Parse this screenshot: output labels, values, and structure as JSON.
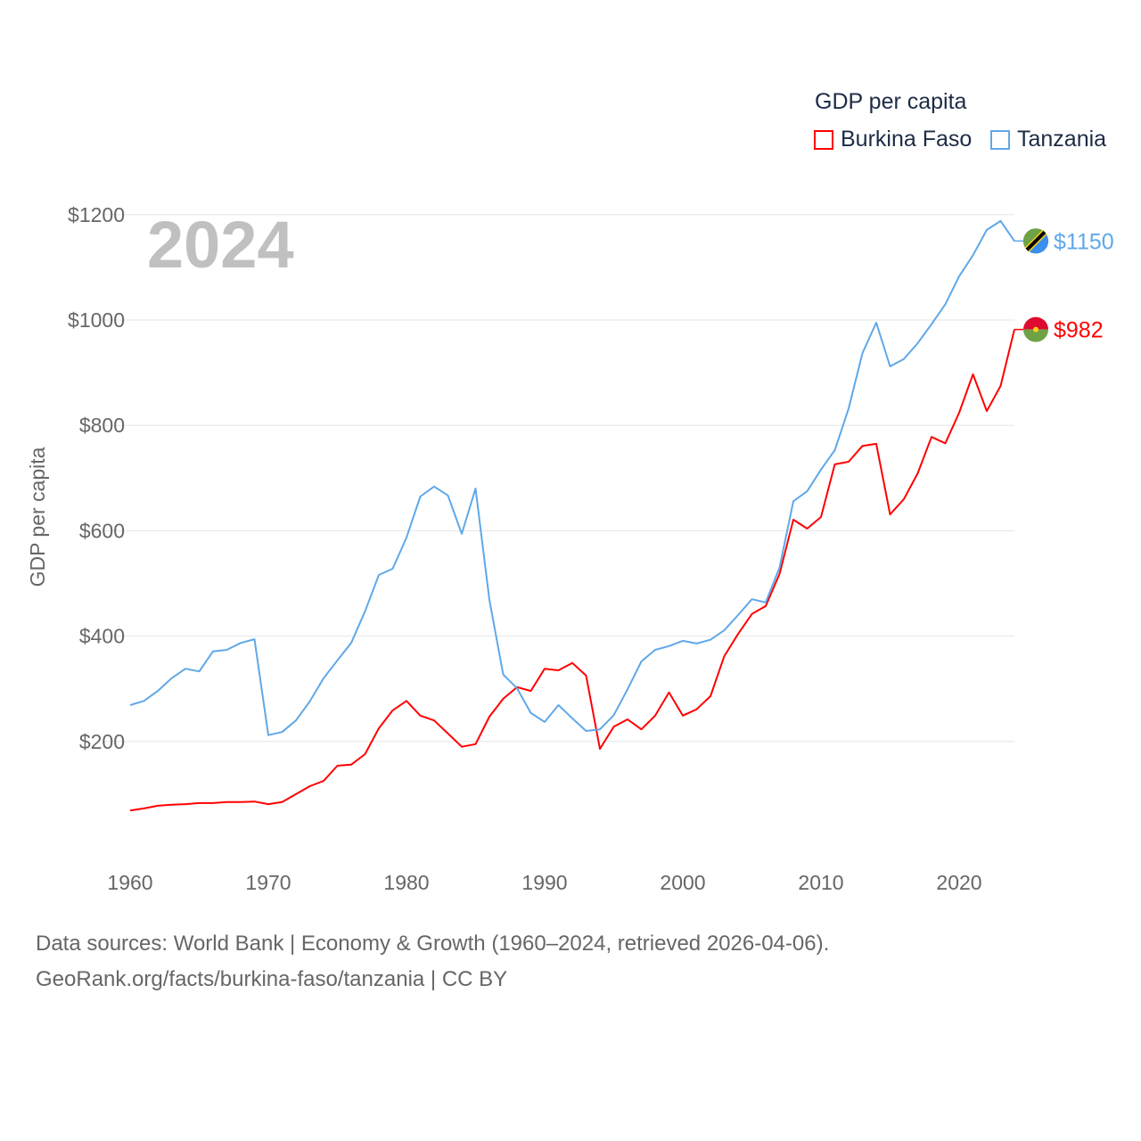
{
  "chart_data": {
    "type": "line",
    "title": "GDP per capita",
    "year_label": "2024",
    "xlabel": "",
    "ylabel": "GDP per capita",
    "xlim": [
      1960,
      2024
    ],
    "ylim": [
      0,
      1200
    ],
    "x_ticks": [
      1960,
      1970,
      1980,
      1990,
      2000,
      2010,
      2020
    ],
    "y_ticks": [
      200,
      400,
      600,
      800,
      1000,
      1200
    ],
    "y_tick_labels": [
      "$200",
      "$400",
      "$600",
      "$800",
      "$1000",
      "$1200"
    ],
    "grid": true,
    "legend_position": "top-right",
    "x": [
      1960,
      1961,
      1962,
      1963,
      1964,
      1965,
      1966,
      1967,
      1968,
      1969,
      1970,
      1971,
      1972,
      1973,
      1974,
      1975,
      1976,
      1977,
      1978,
      1979,
      1980,
      1981,
      1982,
      1983,
      1984,
      1985,
      1986,
      1987,
      1988,
      1989,
      1990,
      1991,
      1992,
      1993,
      1994,
      1995,
      1996,
      1997,
      1998,
      1999,
      2000,
      2001,
      2002,
      2003,
      2004,
      2005,
      2006,
      2007,
      2008,
      2009,
      2010,
      2011,
      2012,
      2013,
      2014,
      2015,
      2016,
      2017,
      2018,
      2019,
      2020,
      2021,
      2022,
      2023,
      2024
    ],
    "series": [
      {
        "name": "Burkina Faso",
        "color": "#ff0000",
        "end_label": "$982",
        "values": [
          69,
          73,
          78,
          80,
          81,
          83,
          83,
          85,
          85,
          86,
          81,
          85,
          100,
          115,
          125,
          154,
          156,
          176,
          225,
          259,
          277,
          249,
          240,
          215,
          190,
          195,
          247,
          281,
          303,
          296,
          338,
          335,
          349,
          325,
          186,
          228,
          242,
          223,
          249,
          293,
          249,
          261,
          286,
          362,
          404,
          442,
          457,
          518,
          621,
          604,
          626,
          726,
          731,
          761,
          765,
          631,
          660,
          709,
          778,
          766,
          824,
          897,
          827,
          875,
          982
        ]
      },
      {
        "name": "Tanzania",
        "color": "#5fa8e8",
        "end_label": "$1150",
        "values": [
          269,
          277,
          296,
          320,
          338,
          333,
          371,
          374,
          387,
          394,
          212,
          218,
          240,
          276,
          320,
          354,
          387,
          447,
          516,
          528,
          587,
          665,
          684,
          667,
          594,
          680,
          469,
          327,
          301,
          254,
          237,
          269,
          244,
          220,
          223,
          250,
          299,
          352,
          374,
          381,
          391,
          386,
          393,
          411,
          440,
          470,
          464,
          530,
          656,
          675,
          716,
          753,
          832,
          937,
          995,
          912,
          926,
          956,
          992,
          1030,
          1083,
          1123,
          1171,
          1188,
          1150
        ]
      }
    ]
  },
  "footer": {
    "line1": "Data sources: World Bank | Economy & Growth (1960–2024, retrieved 2026-04-06).",
    "line2": "GeoRank.org/facts/burkina-faso/tanzania | CC BY"
  }
}
